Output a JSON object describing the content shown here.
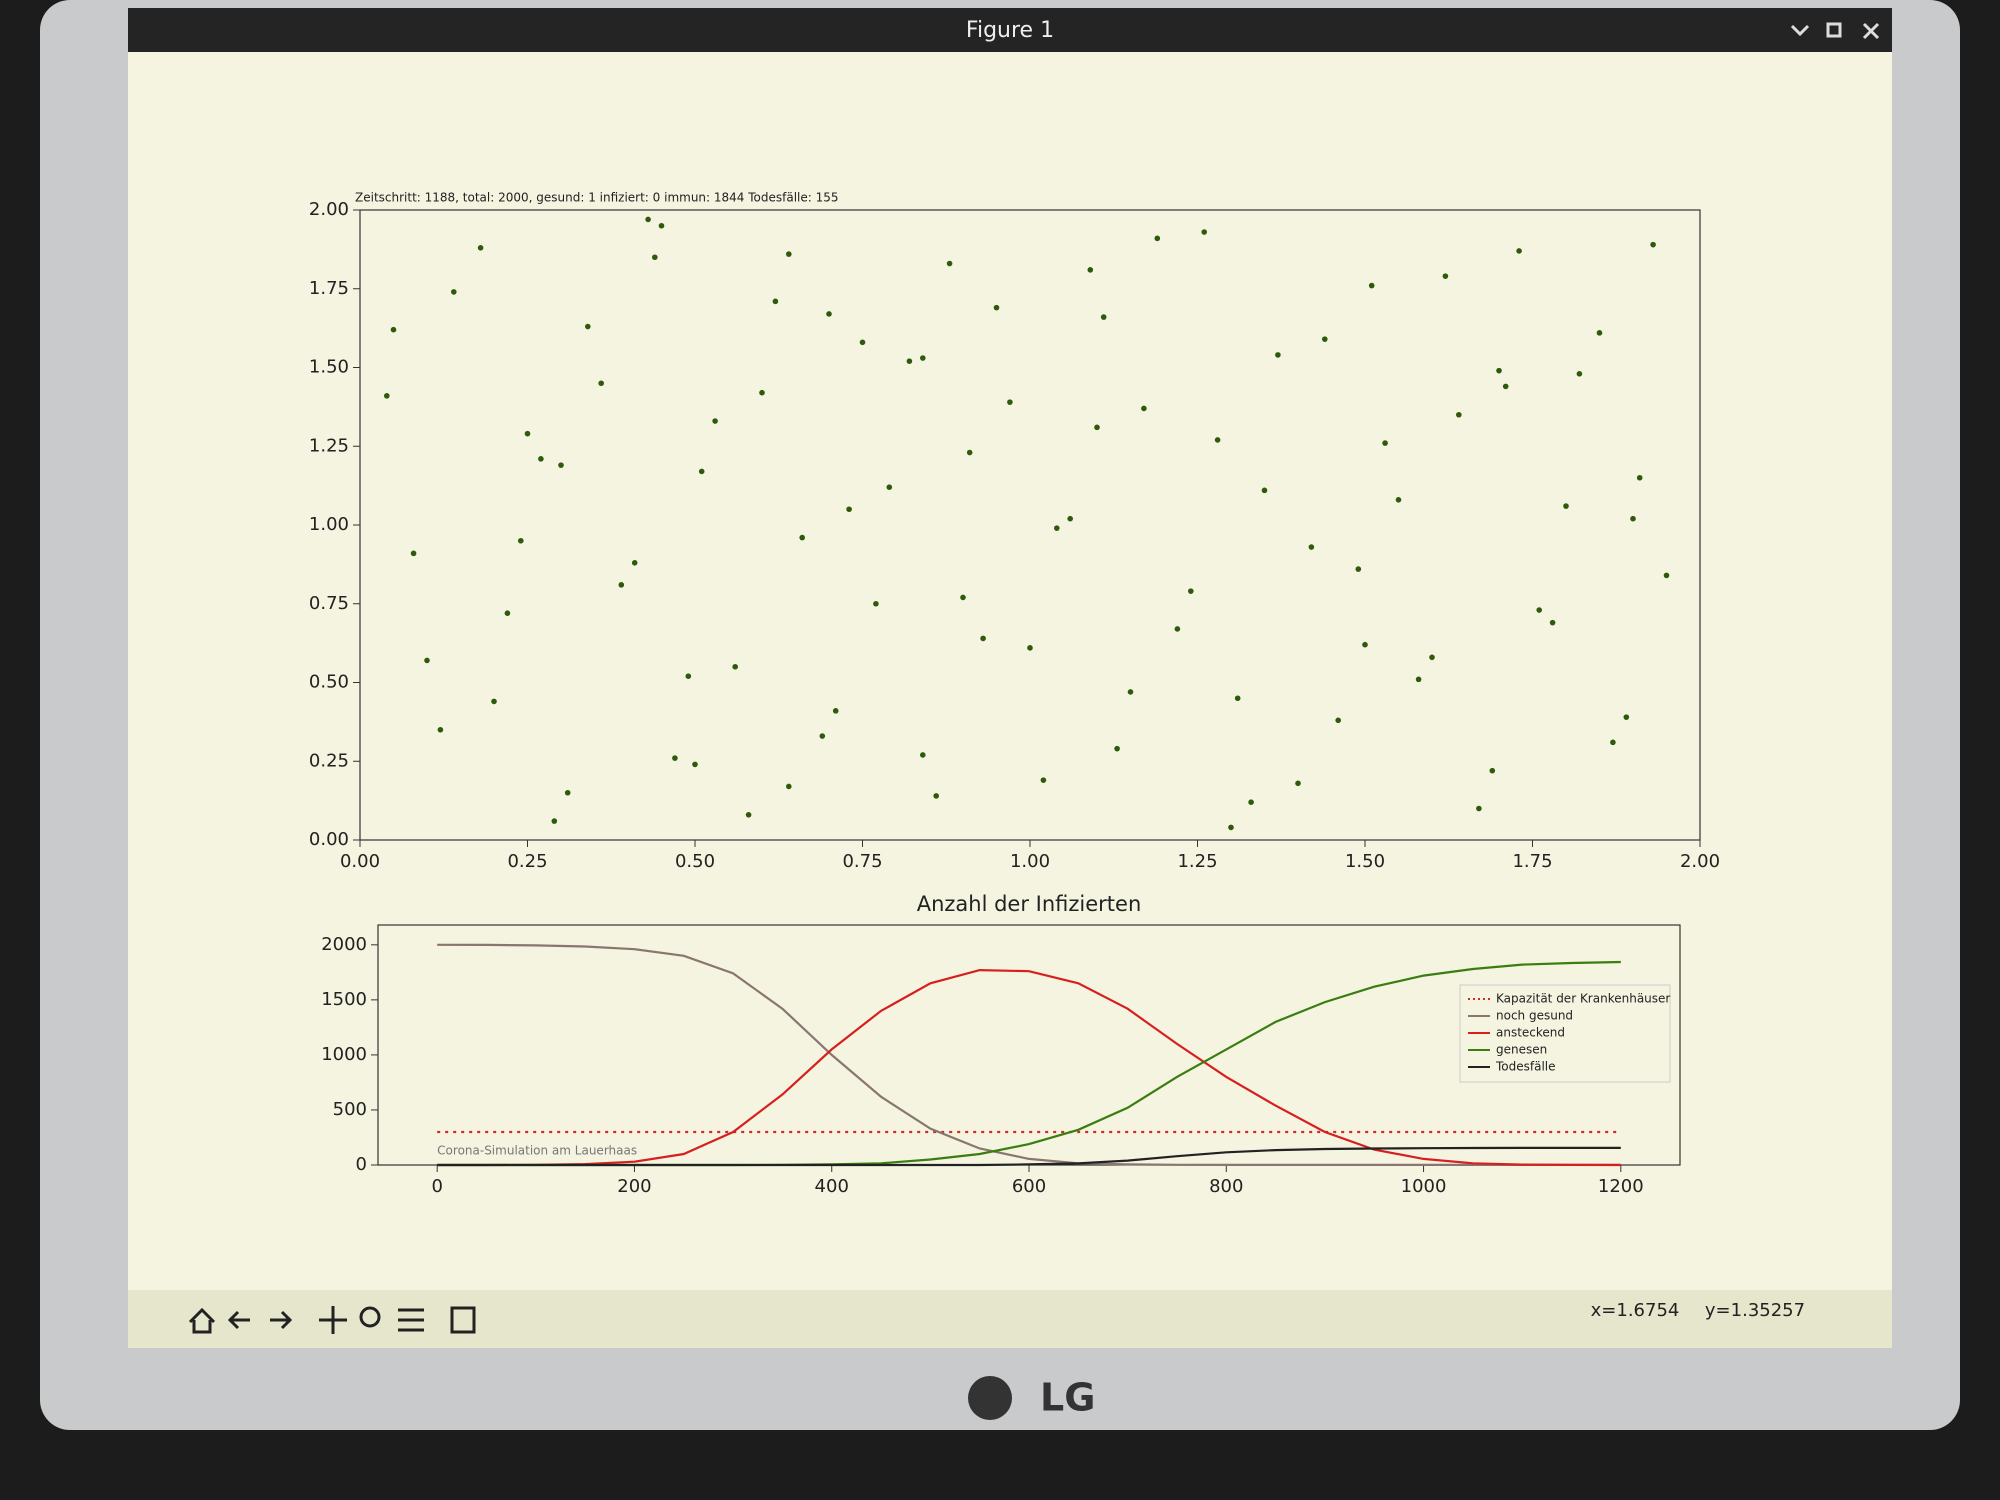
{
  "window": {
    "title": "Figure 1"
  },
  "chart_data": [
    {
      "type": "scatter",
      "annotation": "Zeitschritt: 1188, total: 2000, gesund: 1 infiziert: 0 immun: 1844 Todesfälle: 155",
      "color": "#2f5a0c",
      "x": [
        0.05,
        0.12,
        0.18,
        0.22,
        0.27,
        0.31,
        0.36,
        0.41,
        0.45,
        0.49,
        0.53,
        0.58,
        0.62,
        0.66,
        0.71,
        0.75,
        0.79,
        0.84,
        0.88,
        0.93,
        0.97,
        1.02,
        1.06,
        1.11,
        1.15,
        1.19,
        1.24,
        1.28,
        1.33,
        1.37,
        1.42,
        1.46,
        1.51,
        1.55,
        1.6,
        1.64,
        1.69,
        1.73,
        1.78,
        1.82,
        1.87,
        1.91,
        1.95,
        0.08,
        0.14,
        0.2,
        0.25,
        0.29,
        0.34,
        0.39,
        0.43,
        0.47,
        0.51,
        0.56,
        0.6,
        0.64,
        0.69,
        0.73,
        0.77,
        0.82,
        0.86,
        0.91,
        0.95,
        1.0,
        1.04,
        1.09,
        1.13,
        1.17,
        1.22,
        1.26,
        1.31,
        1.35,
        1.4,
        1.44,
        1.49,
        1.53,
        1.58,
        1.62,
        1.67,
        1.71,
        1.76,
        1.8,
        1.85,
        1.89,
        1.93,
        0.1,
        0.3,
        0.5,
        0.7,
        0.9,
        1.1,
        1.3,
        1.5,
        1.7,
        1.9,
        0.04,
        0.24,
        0.44,
        0.64,
        0.84
      ],
      "y": [
        1.62,
        0.35,
        1.88,
        0.72,
        1.21,
        0.15,
        1.45,
        0.88,
        1.95,
        0.52,
        1.33,
        0.08,
        1.71,
        0.96,
        0.41,
        1.58,
        1.12,
        0.27,
        1.83,
        0.64,
        1.39,
        0.19,
        1.02,
        1.66,
        0.47,
        1.91,
        0.79,
        1.27,
        0.12,
        1.54,
        0.93,
        0.38,
        1.76,
        1.08,
        0.58,
        1.35,
        0.22,
        1.87,
        0.69,
        1.48,
        0.31,
        1.15,
        0.84,
        0.91,
        1.74,
        0.44,
        1.29,
        0.06,
        1.63,
        0.81,
        1.97,
        0.26,
        1.17,
        0.55,
        1.42,
        1.86,
        0.33,
        1.05,
        0.75,
        1.52,
        0.14,
        1.23,
        1.69,
        0.61,
        0.99,
        1.81,
        0.29,
        1.37,
        0.67,
        1.93,
        0.45,
        1.11,
        0.18,
        1.59,
        0.86,
        1.26,
        0.51,
        1.79,
        0.1,
        1.44,
        0.73,
        1.06,
        1.61,
        0.39,
        1.89,
        0.57,
        1.19,
        0.24,
        1.67,
        0.77,
        1.31,
        0.04,
        0.62,
        1.49,
        1.02,
        1.41,
        0.95,
        1.85,
        0.17,
        1.53
      ],
      "xlim": [
        0,
        2
      ],
      "ylim": [
        0,
        2
      ],
      "xticks": [
        {
          "value": 0,
          "label": "0.00"
        },
        {
          "value": 0.25,
          "label": "0.25"
        },
        {
          "value": 0.5,
          "label": "0.50"
        },
        {
          "value": 0.75,
          "label": "0.75"
        },
        {
          "value": 1,
          "label": "1.00"
        },
        {
          "value": 1.25,
          "label": "1.25"
        },
        {
          "value": 1.5,
          "label": "1.50"
        },
        {
          "value": 1.75,
          "label": "1.75"
        },
        {
          "value": 2,
          "label": "2.00"
        }
      ],
      "yticks": [
        {
          "value": 0,
          "label": "0.00"
        },
        {
          "value": 0.25,
          "label": "0.25"
        },
        {
          "value": 0.5,
          "label": "0.50"
        },
        {
          "value": 0.75,
          "label": "0.75"
        },
        {
          "value": 1,
          "label": "1.00"
        },
        {
          "value": 1.25,
          "label": "1.25"
        },
        {
          "value": 1.5,
          "label": "1.50"
        },
        {
          "value": 1.75,
          "label": "1.75"
        },
        {
          "value": 2,
          "label": "2.00"
        }
      ]
    },
    {
      "type": "line",
      "title": "Anzahl der Infizierten",
      "annotation": "Corona-Simulation am Lauerhaas",
      "x": [
        0,
        50,
        100,
        150,
        200,
        250,
        300,
        350,
        400,
        450,
        500,
        550,
        600,
        650,
        700,
        750,
        800,
        850,
        900,
        950,
        1000,
        1050,
        1100,
        1150,
        1200
      ],
      "series": [
        {
          "name": "Kapazität der Krankenhäuser",
          "color": "#d62728",
          "style": "dotted",
          "values": [
            300,
            300,
            300,
            300,
            300,
            300,
            300,
            300,
            300,
            300,
            300,
            300,
            300,
            300,
            300,
            300,
            300,
            300,
            300,
            300,
            300,
            300,
            300,
            300,
            300
          ]
        },
        {
          "name": "noch gesund",
          "color": "#8a7670",
          "values": [
            2000,
            1999,
            1995,
            1985,
            1960,
            1900,
            1740,
            1420,
            1000,
            620,
            330,
            150,
            55,
            15,
            5,
            2,
            1,
            1,
            1,
            1,
            1,
            1,
            1,
            1,
            1
          ]
        },
        {
          "name": "ansteckend",
          "color": "#d62020",
          "values": [
            0,
            0,
            2,
            8,
            30,
            100,
            300,
            640,
            1050,
            1400,
            1650,
            1770,
            1760,
            1650,
            1420,
            1100,
            800,
            540,
            300,
            140,
            55,
            15,
            4,
            1,
            0
          ]
        },
        {
          "name": "genesen",
          "color": "#3a7d10",
          "values": [
            0,
            0,
            0,
            0,
            0,
            0,
            0,
            1,
            5,
            15,
            50,
            100,
            190,
            320,
            520,
            800,
            1050,
            1300,
            1480,
            1620,
            1720,
            1780,
            1820,
            1835,
            1844
          ]
        },
        {
          "name": "Todesfälle",
          "color": "#222222",
          "values": [
            0,
            0,
            0,
            0,
            0,
            0,
            0,
            0,
            0,
            0,
            0,
            0,
            5,
            15,
            40,
            80,
            115,
            135,
            145,
            150,
            153,
            154,
            155,
            155,
            155
          ]
        }
      ],
      "xlim": [
        -60,
        1260
      ],
      "ylim": [
        0,
        2180
      ],
      "xticks": [
        0,
        200,
        400,
        600,
        800,
        1000,
        1200
      ],
      "yticks": [
        0,
        500,
        1000,
        1500,
        2000
      ],
      "legend": "right"
    }
  ],
  "status": {
    "x": "x=1.6754",
    "y": "y=1.35257"
  },
  "bezel": {
    "brand": "LG"
  }
}
